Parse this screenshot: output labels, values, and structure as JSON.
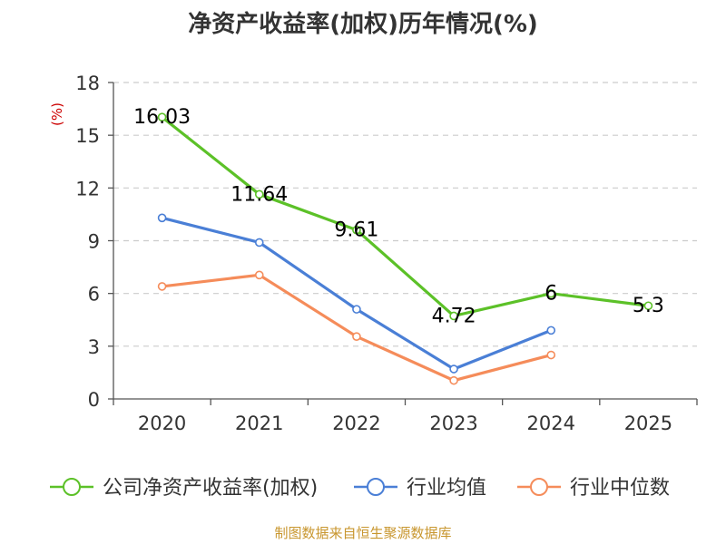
{
  "title": "净资产收益率(加权)历年情况(%)",
  "source": "制图数据来自恒生聚源数据库",
  "chart_data": {
    "type": "line",
    "title": "净资产收益率(加权)历年情况(%)",
    "ylabel": "(%)",
    "xlabel": "",
    "categories": [
      "2020",
      "2021",
      "2022",
      "2023",
      "2024",
      "2025"
    ],
    "ylim": [
      0,
      18
    ],
    "yticks": [
      0,
      3,
      6,
      9,
      12,
      15,
      18
    ],
    "grid": true,
    "legend_position": "bottom",
    "series": [
      {
        "name": "公司净资产收益率(加权)",
        "color": "#5cc128",
        "values": [
          16.03,
          11.64,
          9.61,
          4.72,
          6,
          5.3
        ],
        "labels": [
          "16.03",
          "11.64",
          "9.61",
          "4.72",
          "6",
          "5.3"
        ]
      },
      {
        "name": "行业均值",
        "color": "#4a7fd6",
        "values": [
          10.3,
          8.9,
          5.1,
          1.7,
          3.9,
          null
        ]
      },
      {
        "name": "行业中位数",
        "color": "#f58c5a",
        "values": [
          6.4,
          7.05,
          3.55,
          1.05,
          2.5,
          null
        ]
      }
    ]
  }
}
